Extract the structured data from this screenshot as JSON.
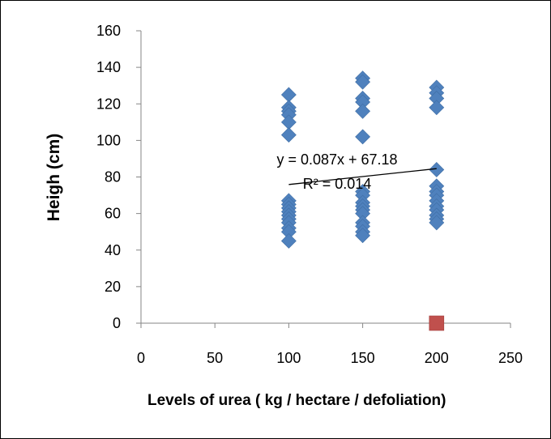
{
  "chart_data": {
    "type": "scatter",
    "xlabel": "Levels of urea ( kg / hectare / defoliation)",
    "ylabel": "Heigh (cm)",
    "xlim": [
      0,
      250
    ],
    "ylim": [
      0,
      160
    ],
    "xticks": [
      0,
      50,
      100,
      150,
      200,
      250
    ],
    "yticks": [
      0,
      20,
      40,
      60,
      80,
      100,
      120,
      140,
      160
    ],
    "grid": false,
    "series": [
      {
        "marker": "diamond",
        "color": "#4F81BD",
        "points": [
          [
            100,
            125
          ],
          [
            100,
            118
          ],
          [
            100,
            116
          ],
          [
            100,
            114
          ],
          [
            100,
            110
          ],
          [
            100,
            103
          ],
          [
            100,
            67
          ],
          [
            100,
            65
          ],
          [
            100,
            63
          ],
          [
            100,
            61
          ],
          [
            100,
            59
          ],
          [
            100,
            57
          ],
          [
            100,
            55
          ],
          [
            100,
            52
          ],
          [
            100,
            50
          ],
          [
            100,
            45
          ],
          [
            150,
            134
          ],
          [
            150,
            132
          ],
          [
            150,
            123
          ],
          [
            150,
            121
          ],
          [
            150,
            116
          ],
          [
            150,
            102
          ],
          [
            150,
            72
          ],
          [
            150,
            70
          ],
          [
            150,
            66
          ],
          [
            150,
            64
          ],
          [
            150,
            62
          ],
          [
            150,
            60
          ],
          [
            150,
            55
          ],
          [
            150,
            53
          ],
          [
            150,
            50
          ],
          [
            150,
            48
          ],
          [
            200,
            129
          ],
          [
            200,
            126
          ],
          [
            200,
            123
          ],
          [
            200,
            118
          ],
          [
            200,
            84
          ],
          [
            200,
            75
          ],
          [
            200,
            72
          ],
          [
            200,
            70
          ],
          [
            200,
            67
          ],
          [
            200,
            64
          ],
          [
            200,
            62
          ],
          [
            200,
            59
          ],
          [
            200,
            57
          ],
          [
            200,
            55
          ]
        ]
      },
      {
        "marker": "square",
        "color": "#C0504D",
        "points": [
          [
            200,
            0
          ]
        ]
      }
    ],
    "trendline": {
      "x": [
        100,
        200
      ],
      "y": [
        75.88,
        84.58
      ]
    },
    "annotations": {
      "equation": "y = 0.087x + 67.18",
      "r_squared": "R² = 0.014"
    }
  }
}
